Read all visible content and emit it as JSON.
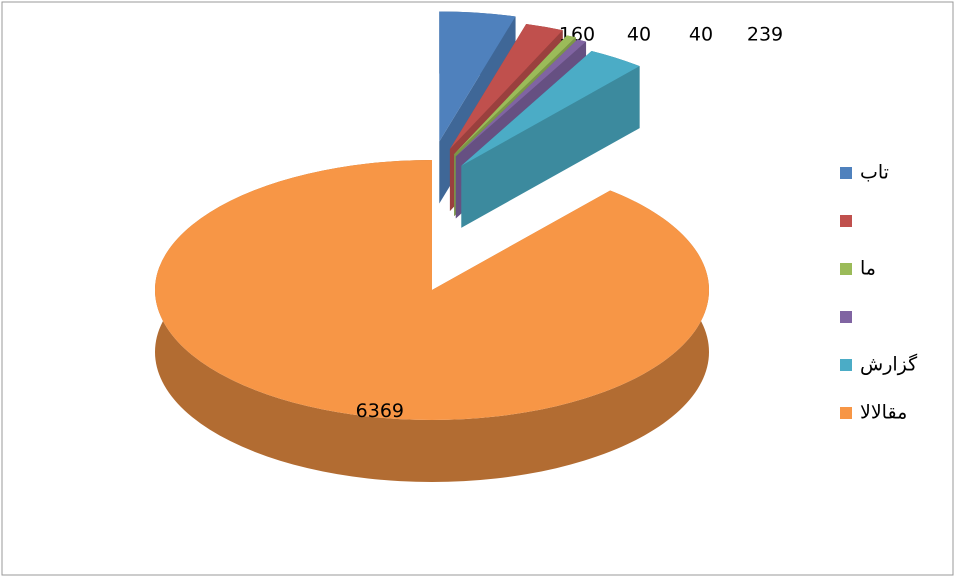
{
  "chart_data": {
    "type": "pie3d",
    "categories": [
      "تاب",
      null,
      "ما",
      null,
      "گزارش",
      "مقالالا"
    ],
    "values": [
      318,
      160,
      40,
      40,
      239,
      6369
    ],
    "colors": [
      "#4f81bd",
      "#c0504d",
      "#9bbb59",
      "#8064a2",
      "#4bacc6",
      "#f79646"
    ],
    "legend": "right"
  }
}
